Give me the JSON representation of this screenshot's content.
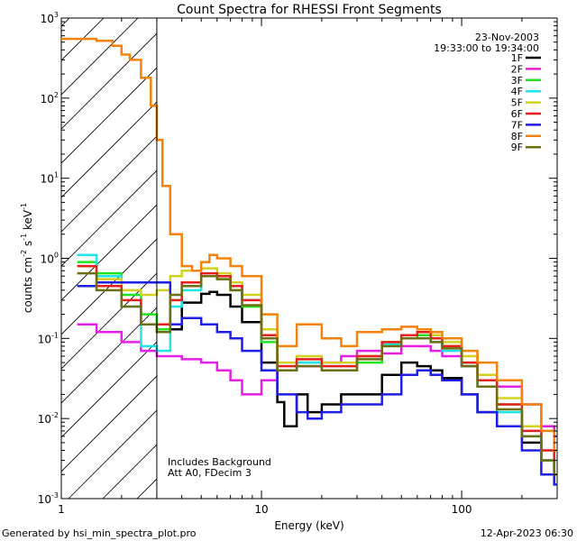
{
  "chart_data": {
    "type": "line",
    "title": "Count Spectra for RHESSI Front Segments",
    "xlabel": "Energy (keV)",
    "ylabel_parts": [
      "counts cm",
      "-2",
      " s",
      "-1",
      " keV",
      "-1"
    ],
    "xscale": "log",
    "yscale": "log",
    "xlim": [
      1,
      300
    ],
    "ylim": [
      0.001,
      1000
    ],
    "x_ticks": [
      {
        "v": 1,
        "t": "1"
      },
      {
        "v": 10,
        "t": "10"
      },
      {
        "v": 100,
        "t": "100"
      }
    ],
    "y_ticks": [
      {
        "v": 0.001,
        "base": "10",
        "exp": "-3"
      },
      {
        "v": 0.01,
        "base": "10",
        "exp": "-2"
      },
      {
        "v": 0.1,
        "base": "10",
        "exp": "-1"
      },
      {
        "v": 1,
        "base": "10",
        "exp": "0"
      },
      {
        "v": 10,
        "base": "10",
        "exp": "1"
      },
      {
        "v": 100,
        "base": "10",
        "exp": "2"
      },
      {
        "v": 1000,
        "base": "10",
        "exp": "3"
      }
    ],
    "date": "23-Nov-2003",
    "time_range": "19:33:00 to 19:34:00",
    "hatched_region_max_energy": 3,
    "annotations": [
      "Includes Background",
      "Att A0, FDecim 3"
    ],
    "footer_left": "Generated by hsi_min_spectra_plot.pro",
    "footer_right": "12-Apr-2023 06:30",
    "series": [
      {
        "name": "1F",
        "color": "#000000",
        "x": [
          3,
          4,
          5,
          5.5,
          6,
          7,
          8,
          10,
          12,
          13,
          15,
          17,
          20,
          25,
          30,
          40,
          50,
          60,
          70,
          80,
          100,
          120,
          150,
          200,
          250,
          290
        ],
        "values": [
          0.13,
          0.28,
          0.36,
          0.38,
          0.35,
          0.25,
          0.16,
          0.05,
          0.016,
          0.008,
          0.02,
          0.012,
          0.015,
          0.02,
          0.02,
          0.035,
          0.05,
          0.045,
          0.04,
          0.032,
          0.02,
          0.012,
          0.008,
          0.005,
          0.003,
          0.002
        ]
      },
      {
        "name": "2F",
        "color": "#e61ee6",
        "x": [
          1.2,
          1.5,
          2,
          2.5,
          3,
          4,
          5,
          6,
          7,
          8,
          10,
          12,
          15,
          20,
          25,
          30,
          40,
          50,
          60,
          70,
          80,
          100,
          120,
          150,
          200,
          250,
          290
        ],
        "values": [
          0.15,
          0.12,
          0.09,
          0.07,
          0.06,
          0.055,
          0.05,
          0.04,
          0.03,
          0.02,
          0.03,
          0.04,
          0.045,
          0.05,
          0.06,
          0.07,
          0.065,
          0.08,
          0.08,
          0.07,
          0.06,
          0.045,
          0.035,
          0.025,
          0.015,
          0.008,
          0.006
        ]
      },
      {
        "name": "3F",
        "color": "#1ee61e",
        "x": [
          1.2,
          1.5,
          2,
          2.5,
          3,
          3.5,
          4,
          5,
          6,
          7,
          8,
          10,
          12,
          15,
          20,
          30,
          40,
          50,
          60,
          70,
          80,
          100,
          120,
          150,
          200,
          250,
          290
        ],
        "values": [
          0.9,
          0.65,
          0.35,
          0.2,
          0.13,
          0.3,
          0.45,
          0.6,
          0.55,
          0.4,
          0.25,
          0.09,
          0.04,
          0.05,
          0.04,
          0.05,
          0.08,
          0.1,
          0.11,
          0.1,
          0.08,
          0.05,
          0.03,
          0.015,
          0.008,
          0.003,
          0.0015
        ]
      },
      {
        "name": "4F",
        "color": "#1ee6e6",
        "x": [
          1.2,
          1.5,
          2,
          2.5,
          3,
          3.5,
          4,
          5,
          6,
          7,
          8,
          10,
          12,
          15,
          20,
          30,
          40,
          50,
          60,
          70,
          80,
          100,
          120,
          150,
          200,
          250,
          290
        ],
        "values": [
          1.1,
          0.6,
          0.25,
          0.08,
          0.07,
          0.25,
          0.4,
          0.6,
          0.6,
          0.45,
          0.3,
          0.1,
          0.04,
          0.05,
          0.045,
          0.06,
          0.085,
          0.1,
          0.1,
          0.09,
          0.07,
          0.045,
          0.025,
          0.012,
          0.006,
          0.003,
          0.002
        ]
      },
      {
        "name": "5F",
        "color": "#d2d21e",
        "x": [
          1.2,
          1.5,
          2,
          2.5,
          3,
          3.5,
          4,
          5,
          6,
          7,
          8,
          10,
          12,
          15,
          20,
          30,
          40,
          50,
          60,
          70,
          80,
          100,
          120,
          150,
          200,
          250,
          290
        ],
        "values": [
          0.8,
          0.55,
          0.4,
          0.35,
          0.4,
          0.6,
          0.7,
          0.75,
          0.65,
          0.5,
          0.35,
          0.13,
          0.05,
          0.06,
          0.05,
          0.06,
          0.09,
          0.11,
          0.12,
          0.11,
          0.09,
          0.06,
          0.035,
          0.018,
          0.008,
          0.004,
          0.002
        ]
      },
      {
        "name": "6F",
        "color": "#e61e1e",
        "x": [
          1.2,
          1.5,
          2,
          2.5,
          3,
          3.5,
          4,
          5,
          6,
          7,
          8,
          10,
          12,
          15,
          20,
          30,
          40,
          50,
          60,
          70,
          80,
          100,
          120,
          150,
          200,
          250,
          290
        ],
        "values": [
          0.8,
          0.45,
          0.3,
          0.15,
          0.15,
          0.3,
          0.5,
          0.65,
          0.6,
          0.45,
          0.3,
          0.11,
          0.045,
          0.055,
          0.045,
          0.06,
          0.09,
          0.11,
          0.12,
          0.1,
          0.08,
          0.05,
          0.03,
          0.015,
          0.007,
          0.004,
          0.002
        ]
      },
      {
        "name": "7F",
        "color": "#1e1ee6",
        "x": [
          1.2,
          1.5,
          2,
          2.5,
          3,
          3.5,
          4,
          5,
          6,
          7,
          8,
          10,
          12,
          15,
          17,
          20,
          25,
          30,
          40,
          50,
          60,
          70,
          80,
          100,
          120,
          150,
          200,
          250,
          290
        ],
        "values": [
          0.45,
          0.5,
          0.5,
          0.5,
          0.5,
          0.15,
          0.18,
          0.15,
          0.12,
          0.1,
          0.07,
          0.04,
          0.02,
          0.012,
          0.01,
          0.012,
          0.015,
          0.015,
          0.02,
          0.035,
          0.04,
          0.035,
          0.03,
          0.02,
          0.012,
          0.008,
          0.004,
          0.002,
          0.0015
        ]
      },
      {
        "name": "8F",
        "color": "#f5820a",
        "x": [
          1,
          1.5,
          1.8,
          2,
          2.2,
          2.5,
          2.8,
          3,
          3.2,
          3.5,
          4,
          4.5,
          5,
          5.5,
          6,
          7,
          8,
          10,
          12,
          15,
          20,
          25,
          30,
          40,
          50,
          60,
          70,
          80,
          100,
          120,
          150,
          200,
          250,
          290
        ],
        "values": [
          550,
          520,
          450,
          350,
          300,
          180,
          80,
          30,
          8,
          2,
          0.8,
          0.7,
          0.9,
          1.1,
          1.0,
          0.8,
          0.6,
          0.2,
          0.08,
          0.15,
          0.1,
          0.08,
          0.12,
          0.13,
          0.14,
          0.13,
          0.12,
          0.1,
          0.07,
          0.05,
          0.03,
          0.015,
          0.007,
          0.004
        ]
      },
      {
        "name": "9F",
        "color": "#6e6e14",
        "x": [
          1.2,
          1.5,
          2,
          2.5,
          3,
          3.5,
          4,
          5,
          6,
          7,
          8,
          10,
          12,
          15,
          20,
          30,
          40,
          50,
          60,
          70,
          80,
          100,
          120,
          150,
          200,
          250,
          290
        ],
        "values": [
          0.65,
          0.4,
          0.25,
          0.15,
          0.12,
          0.35,
          0.45,
          0.6,
          0.55,
          0.4,
          0.26,
          0.1,
          0.04,
          0.045,
          0.04,
          0.055,
          0.08,
          0.1,
          0.1,
          0.09,
          0.075,
          0.045,
          0.025,
          0.013,
          0.006,
          0.003,
          0.002
        ]
      }
    ]
  }
}
